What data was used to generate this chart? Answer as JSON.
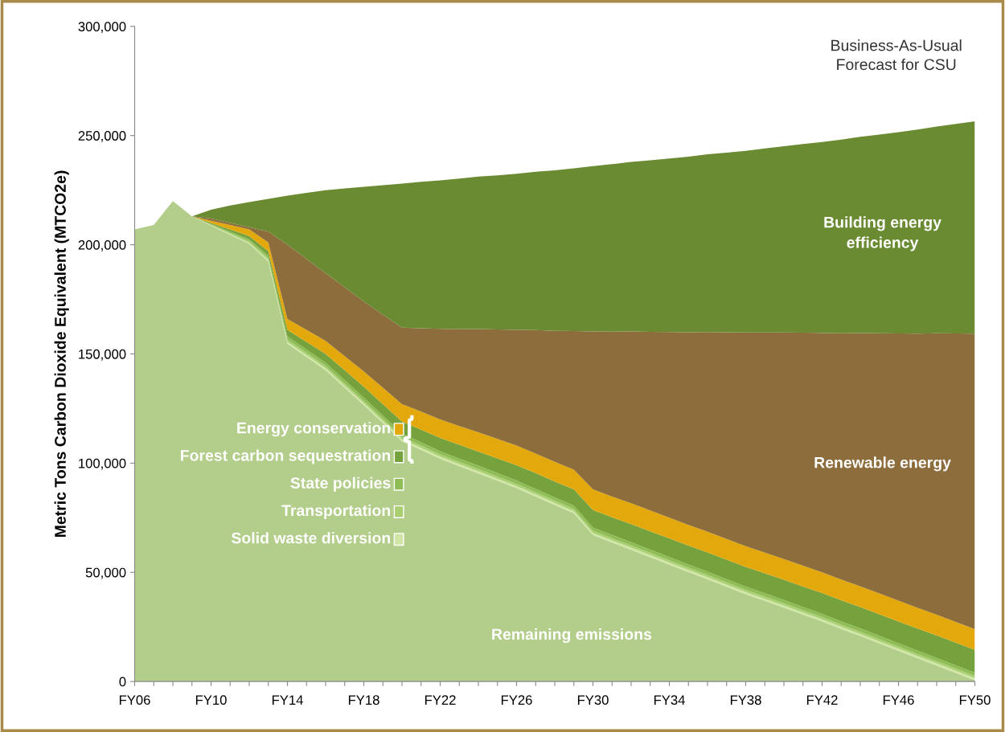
{
  "chart_data": {
    "type": "area",
    "stacked": true,
    "ylabel": "Metric Tons Carbon Dioxide Equivalent (MTCO2e)",
    "annotations": [
      "Business-As-Usual\nForecast for CSU"
    ],
    "categories": [
      "FY06",
      null,
      null,
      null,
      "FY10",
      null,
      null,
      null,
      "FY14",
      null,
      null,
      null,
      "FY18",
      null,
      null,
      null,
      "FY22",
      null,
      null,
      null,
      "FY26",
      null,
      null,
      null,
      "FY30",
      null,
      null,
      null,
      "FY34",
      null,
      null,
      null,
      "FY38",
      null,
      null,
      null,
      "FY42",
      null,
      null,
      null,
      "FY46",
      null,
      null,
      null,
      "FY50"
    ],
    "series": [
      {
        "name": "Remaining emissions",
        "color": "#b3cd8a",
        "values": [
          207000,
          209000,
          220000,
          213000,
          208700,
          204500,
          200400,
          192300,
          154700,
          148600,
          142500,
          134500,
          126500,
          118300,
          110000,
          106000,
          102000,
          98600,
          95300,
          91900,
          88500,
          84700,
          80800,
          77000,
          67000,
          63600,
          60300,
          56900,
          53500,
          50100,
          46800,
          43400,
          40000,
          36900,
          33800,
          30600,
          27500,
          24100,
          20800,
          17400,
          14000,
          10600,
          7300,
          3900,
          500
        ]
      },
      {
        "name": "Solid waste diversion",
        "color": "#cfe6a4",
        "values": [
          0,
          0,
          0,
          0,
          200,
          400,
          500,
          600,
          800,
          900,
          1000,
          1000,
          1000,
          1000,
          1000,
          1000,
          1000,
          1000,
          1000,
          1000,
          1000,
          1000,
          1000,
          1000,
          1000,
          1000,
          1000,
          1000,
          1000,
          1000,
          1000,
          1000,
          1000,
          1000,
          1000,
          1000,
          1000,
          1000,
          1000,
          1000,
          1000,
          1000,
          1000,
          1000,
          1000
        ]
      },
      {
        "name": "Transportation",
        "color": "#a9cf72",
        "values": [
          0,
          0,
          0,
          0,
          300,
          500,
          700,
          900,
          1000,
          1000,
          1000,
          1000,
          1000,
          1000,
          1000,
          1000,
          1000,
          1000,
          1000,
          1000,
          1000,
          1000,
          1000,
          1000,
          1000,
          1000,
          1000,
          1000,
          1000,
          1000,
          1000,
          1000,
          1000,
          1000,
          1000,
          1000,
          1000,
          1000,
          1000,
          1000,
          1000,
          1000,
          1000,
          1000,
          1000
        ]
      },
      {
        "name": "State policies",
        "color": "#8fbd55",
        "values": [
          0,
          0,
          0,
          0,
          300,
          600,
          900,
          1200,
          1500,
          1500,
          1500,
          1500,
          1500,
          1500,
          1500,
          1500,
          1500,
          1500,
          1500,
          1500,
          1500,
          1500,
          1500,
          1500,
          1500,
          1500,
          1500,
          1500,
          1500,
          1500,
          1500,
          1500,
          1500,
          1500,
          1500,
          1500,
          1500,
          1500,
          1500,
          1500,
          1500,
          1500,
          1500,
          1500,
          1500
        ]
      },
      {
        "name": "Forest carbon sequestration",
        "color": "#76a23e",
        "values": [
          0,
          0,
          0,
          0,
          500,
          1000,
          1500,
          2000,
          3000,
          3500,
          4000,
          4500,
          5000,
          5200,
          5500,
          5800,
          6000,
          6300,
          6500,
          6800,
          7000,
          7200,
          7300,
          7500,
          8000,
          8100,
          8300,
          8400,
          8500,
          8600,
          8800,
          8900,
          9000,
          9100,
          9300,
          9400,
          9500,
          9600,
          9800,
          9900,
          10000,
          10100,
          10300,
          10400,
          10500
        ]
      },
      {
        "name": "Energy conservation",
        "color": "#e3a90c",
        "values": [
          0,
          0,
          0,
          0,
          1000,
          2000,
          3000,
          4000,
          5000,
          5500,
          6000,
          6500,
          7000,
          7500,
          8000,
          8300,
          8500,
          8600,
          8800,
          8900,
          9000,
          9000,
          9000,
          9000,
          9500,
          9500,
          9500,
          9500,
          9500,
          9500,
          9500,
          9500,
          9500,
          9500,
          9500,
          9500,
          9500,
          9500,
          9500,
          9500,
          9500,
          9500,
          9500,
          9500,
          9500
        ]
      },
      {
        "name": "Renewable energy",
        "color": "#8c6d3b",
        "values": [
          0,
          0,
          0,
          0,
          1000,
          1000,
          1000,
          5000,
          34000,
          32500,
          31000,
          31500,
          32000,
          33500,
          35000,
          38200,
          41500,
          44400,
          47300,
          50100,
          53000,
          56500,
          60000,
          63500,
          72300,
          75500,
          78700,
          81800,
          85000,
          88200,
          91400,
          94600,
          97800,
          100800,
          103700,
          106700,
          109600,
          112800,
          116000,
          119200,
          122400,
          125600,
          128900,
          132100,
          135300
        ]
      },
      {
        "name": "Building energy efficiency",
        "color": "#6b8b33",
        "values": [
          0,
          0,
          0,
          0,
          4000,
          8000,
          11500,
          15000,
          22500,
          30300,
          38000,
          45300,
          52500,
          59300,
          66000,
          67000,
          68000,
          68900,
          69800,
          70600,
          71500,
          72500,
          73500,
          74500,
          75700,
          76700,
          77600,
          78600,
          79500,
          80400,
          81400,
          82300,
          83200,
          84300,
          85300,
          86400,
          87400,
          88600,
          89800,
          90900,
          92100,
          93400,
          94600,
          95900,
          97200
        ]
      }
    ],
    "ylim": [
      0,
      300000
    ],
    "yticks": [
      {
        "value": 0,
        "label": "0"
      },
      {
        "value": 50000,
        "label": "50,000"
      },
      {
        "value": 100000,
        "label": "100,000"
      },
      {
        "value": 150000,
        "label": "150,000"
      },
      {
        "value": 200000,
        "label": "200,000"
      },
      {
        "value": 250000,
        "label": "250,000"
      },
      {
        "value": 300000,
        "label": "300,000"
      }
    ],
    "grid": false,
    "legend": "left"
  }
}
